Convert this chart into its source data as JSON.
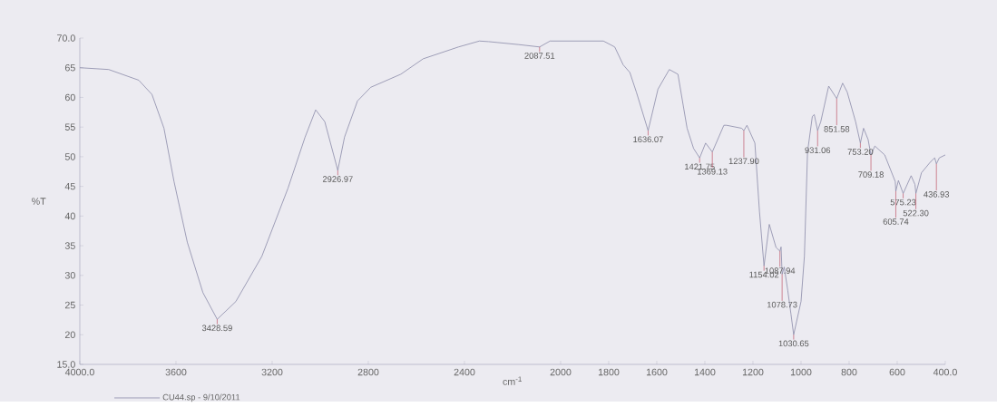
{
  "chart_data": {
    "type": "line",
    "xlabel": "cm$^{-1}$",
    "ylabel": "%T",
    "x": [
      4000,
      3880,
      3755,
      3700,
      3650,
      3608,
      3553,
      3488,
      3428.59,
      3351,
      3243,
      3134,
      3063,
      3019,
      2981,
      2926.97,
      2899,
      2845,
      2790,
      2665,
      2572,
      2425,
      2338,
      2300,
      2174,
      2087.51,
      2044,
      1822,
      1775,
      1740,
      1712,
      1685,
      1636.07,
      1595,
      1548,
      1512,
      1474,
      1447,
      1421.75,
      1397,
      1369.13,
      1321,
      1310,
      1247,
      1237.9,
      1225,
      1192,
      1173,
      1154.02,
      1132,
      1104,
      1087.94,
      1083,
      1078.73,
      1070,
      1055,
      1042,
      1030.65,
      1000,
      986,
      973,
      953,
      945,
      931.06,
      918,
      885,
      851.58,
      827,
      808,
      773,
      753.2,
      740,
      721,
      709.18,
      693,
      652,
      608,
      605.74,
      595,
      575.23,
      542,
      526,
      522.3,
      499,
      460,
      444,
      436.93,
      425,
      400
    ],
    "series": [
      {
        "name": "CU44.sp - 9/10/2011",
        "color": "#8a8aa8",
        "values": [
          65,
          64.7,
          62.9,
          60.5,
          54.8,
          45.8,
          35.6,
          27.1,
          22.6,
          25.6,
          33.2,
          44.7,
          53.3,
          57.9,
          55.9,
          47.7,
          53.3,
          59.4,
          61.7,
          63.9,
          66.5,
          68.5,
          69.5,
          69.4,
          68.9,
          68.5,
          69.5,
          69.5,
          68.5,
          65.5,
          64.2,
          60.9,
          54.4,
          61.4,
          64.7,
          63.9,
          54.8,
          51.4,
          49.8,
          52.3,
          50.8,
          55.3,
          55.3,
          54.8,
          54.4,
          55.3,
          52.3,
          40.8,
          31.6,
          38.6,
          34.7,
          34.1,
          34.8,
          30.2,
          31.4,
          27.4,
          23.5,
          20,
          25.6,
          33.2,
          50.8,
          56.8,
          57.1,
          54.4,
          55.9,
          61.9,
          59.8,
          62.4,
          60.9,
          55.9,
          52.3,
          54.8,
          52.9,
          50.3,
          51.8,
          50.3,
          45.8,
          44.2,
          46,
          43.8,
          46.8,
          45.3,
          43.8,
          47.3,
          49.2,
          49.8,
          48.8,
          49.8,
          50.3
        ]
      }
    ],
    "xlim": [
      4000,
      400
    ],
    "xticks": [
      {
        "value": 4000,
        "label": "4000.0"
      },
      3600,
      3200,
      2800,
      2400,
      2000,
      1800,
      1600,
      1400,
      1200,
      1000,
      800,
      600,
      {
        "value": 400,
        "label": "400.0"
      }
    ],
    "ylim": [
      15,
      70
    ],
    "yticks": [
      {
        "value": 15,
        "label": "15.0"
      },
      20,
      25,
      30,
      35,
      40,
      45,
      50,
      55,
      60,
      65,
      {
        "value": 70,
        "label": "70.0"
      }
    ],
    "grid": false,
    "legend": "bottom left",
    "marker": "none",
    "line_style": "solid",
    "annotations": [
      {
        "text": "3428.59",
        "x": 3428.59,
        "y": 22.6
      },
      {
        "text": "2926.97",
        "x": 2926.97,
        "y": 47.7
      },
      {
        "text": "2087.51",
        "x": 2087.51,
        "y": 68.5
      },
      {
        "text": "1636.07",
        "x": 1636.07,
        "y": 54.4
      },
      {
        "text": "1421.75",
        "x": 1421.75,
        "y": 49.8
      },
      {
        "text": "1369.13",
        "x": 1369.13,
        "y": 50.8
      },
      {
        "text": "1237.90",
        "x": 1237.9,
        "y": 54.4
      },
      {
        "text": "1154.02",
        "x": 1154.02,
        "y": 31.6
      },
      {
        "text": "1087.94",
        "x": 1087.94,
        "y": 34.1
      },
      {
        "text": "1078.73",
        "x": 1078.73,
        "y": 30.2
      },
      {
        "text": "1030.65",
        "x": 1030.65,
        "y": 20
      },
      {
        "text": "931.06",
        "x": 931.06,
        "y": 54.4
      },
      {
        "text": "851.58",
        "x": 851.58,
        "y": 59.8
      },
      {
        "text": "753.20",
        "x": 753.2,
        "y": 52.3
      },
      {
        "text": "709.18",
        "x": 709.18,
        "y": 50.3
      },
      {
        "text": "605.74",
        "x": 605.74,
        "y": 44.2
      },
      {
        "text": "575.23",
        "x": 575.23,
        "y": 43.8
      },
      {
        "text": "522.30",
        "x": 522.3,
        "y": 43.8
      },
      {
        "text": "436.93",
        "x": 436.93,
        "y": 48.8
      }
    ]
  }
}
